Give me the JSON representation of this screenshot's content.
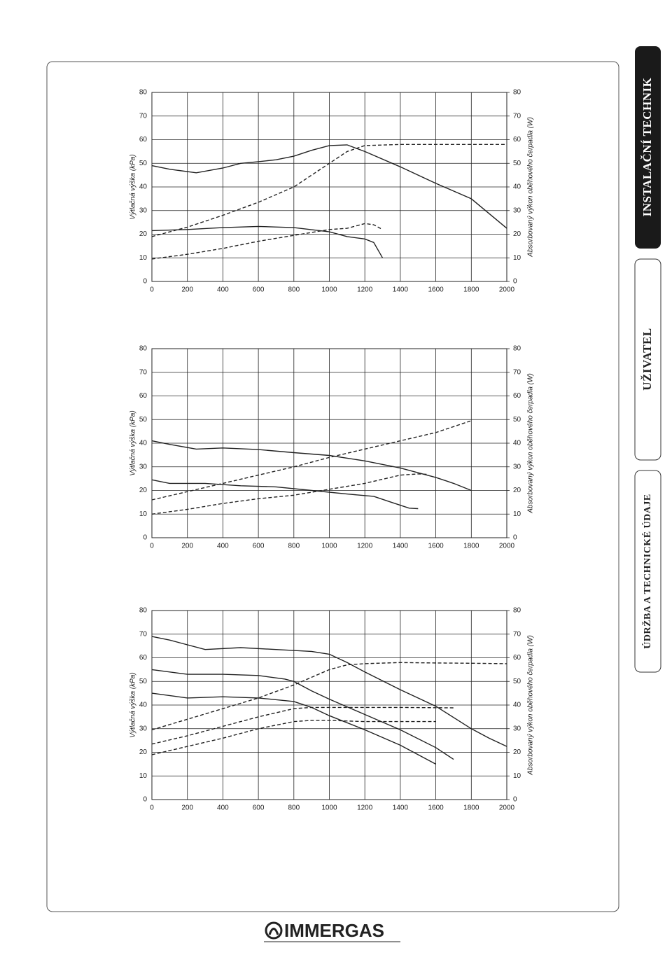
{
  "tabs": [
    "INSTALAČNÍ TECHNIK",
    "UŽIVATEL",
    "ÚDRŽBA A TECHNICKÉ ÚDAJE"
  ],
  "logo": "IMMERGAS",
  "chart_data": [
    {
      "type": "line",
      "ylabel": "Výtlačná výška (kPa)",
      "y2label": "Absorbovaný výkon oběhového čerpadla (W)",
      "xlim": [
        0,
        2000
      ],
      "xticks": [
        0,
        200,
        400,
        600,
        800,
        1000,
        1200,
        1400,
        1600,
        1800,
        2000
      ],
      "ylim": [
        0,
        80
      ],
      "yticks": [
        0,
        10,
        20,
        30,
        40,
        50,
        60,
        70,
        80
      ],
      "y2lim": [
        0,
        80
      ],
      "y2ticks": [
        0,
        10,
        20,
        30,
        40,
        50,
        60,
        70,
        80
      ],
      "grid": true,
      "series": [
        {
          "style": "solid",
          "color": "#222",
          "x": [
            0,
            100,
            250,
            400,
            500,
            600,
            700,
            800,
            900,
            1000,
            1100,
            1200,
            1400,
            1600,
            1800,
            2000
          ],
          "values": [
            49,
            47.5,
            46,
            48,
            50,
            50.7,
            51.5,
            53,
            55.5,
            57.5,
            57.8,
            55,
            48.5,
            41.5,
            35,
            22.5
          ]
        },
        {
          "style": "solid",
          "color": "#222",
          "x": [
            0,
            200,
            400,
            600,
            800,
            1000,
            1100,
            1200,
            1250,
            1300
          ],
          "values": [
            21.5,
            22,
            22.8,
            23.3,
            22.8,
            21,
            19,
            18,
            16.5,
            10
          ]
        },
        {
          "style": "dashed",
          "color": "#222",
          "axis": "y2",
          "x": [
            0,
            200,
            400,
            600,
            800,
            1000,
            1100,
            1200,
            1400,
            1600,
            1800,
            2000
          ],
          "values": [
            19,
            23,
            28,
            33.5,
            40,
            50,
            55,
            57.5,
            58,
            58,
            58,
            58
          ]
        },
        {
          "style": "dashed",
          "color": "#222",
          "axis": "y2",
          "x": [
            0,
            200,
            400,
            600,
            800,
            1000,
            1100,
            1200,
            1250,
            1300
          ],
          "values": [
            9.5,
            11.5,
            14,
            17,
            19.5,
            22,
            22.5,
            24.5,
            24,
            22
          ]
        }
      ]
    },
    {
      "type": "line",
      "ylabel": "Výtlačná výška (kPa)",
      "y2label": "Absorbovaný výkon oběhového čerpadla (W)",
      "xlim": [
        0,
        2000
      ],
      "xticks": [
        0,
        200,
        400,
        600,
        800,
        1000,
        1200,
        1400,
        1600,
        1800,
        2000
      ],
      "ylim": [
        0,
        80
      ],
      "yticks": [
        0,
        10,
        20,
        30,
        40,
        50,
        60,
        70,
        80
      ],
      "y2lim": [
        0,
        80
      ],
      "y2ticks": [
        0,
        10,
        20,
        30,
        40,
        50,
        60,
        70,
        80
      ],
      "grid": true,
      "series": [
        {
          "style": "solid",
          "color": "#222",
          "x": [
            0,
            100,
            250,
            400,
            600,
            800,
            1000,
            1200,
            1400,
            1600,
            1700,
            1800
          ],
          "values": [
            41,
            39.5,
            37.5,
            38,
            37.3,
            36,
            34.8,
            32.5,
            29.5,
            25.5,
            23,
            20
          ]
        },
        {
          "style": "solid",
          "color": "#222",
          "x": [
            0,
            100,
            300,
            500,
            700,
            900,
            1100,
            1250,
            1350,
            1450,
            1500
          ],
          "values": [
            24.5,
            23,
            23,
            22,
            21.5,
            20,
            18.5,
            17.5,
            15,
            12.5,
            12.3
          ]
        },
        {
          "style": "dashed",
          "color": "#222",
          "axis": "y2",
          "x": [
            0,
            200,
            400,
            600,
            800,
            1000,
            1200,
            1400,
            1600,
            1800
          ],
          "values": [
            16,
            19.5,
            23,
            26.5,
            30,
            34,
            37.5,
            41,
            44.5,
            49.5
          ]
        },
        {
          "style": "dashed",
          "color": "#222",
          "axis": "y2",
          "x": [
            0,
            200,
            400,
            600,
            800,
            1000,
            1200,
            1400,
            1500,
            1550
          ],
          "values": [
            10,
            12,
            14.5,
            16.5,
            18,
            20.5,
            23,
            26.5,
            27,
            26.8
          ]
        }
      ]
    },
    {
      "type": "line",
      "ylabel": "Výtlačná výška (kPa)",
      "y2label": "Absorbovaný výkon oběhového čerpadla (W)",
      "xlim": [
        0,
        2000
      ],
      "xticks": [
        0,
        200,
        400,
        600,
        800,
        1000,
        1200,
        1400,
        1600,
        1800,
        2000
      ],
      "ylim": [
        0,
        80
      ],
      "yticks": [
        0,
        10,
        20,
        30,
        40,
        50,
        60,
        70,
        80
      ],
      "y2lim": [
        0,
        80
      ],
      "y2ticks": [
        0,
        10,
        20,
        30,
        40,
        50,
        60,
        70,
        80
      ],
      "grid": true,
      "series": [
        {
          "style": "solid",
          "color": "#222",
          "x": [
            0,
            100,
            300,
            500,
            700,
            900,
            1000,
            1100,
            1200,
            1400,
            1600,
            1800,
            1900,
            2000
          ],
          "values": [
            69,
            67.5,
            63.5,
            64.3,
            63.5,
            62.7,
            61.5,
            58,
            54,
            46.5,
            39.5,
            30,
            26,
            22.5
          ]
        },
        {
          "style": "solid",
          "color": "#222",
          "x": [
            0,
            200,
            400,
            600,
            750,
            800,
            900,
            1000,
            1200,
            1400,
            1600,
            1700
          ],
          "values": [
            55,
            53,
            53,
            52.5,
            51,
            50,
            46,
            42.5,
            36,
            29.5,
            22,
            17
          ]
        },
        {
          "style": "solid",
          "color": "#222",
          "x": [
            0,
            200,
            400,
            600,
            800,
            900,
            1000,
            1200,
            1400,
            1600
          ],
          "values": [
            45,
            43,
            43.5,
            43,
            41.5,
            39,
            35.5,
            29.5,
            23,
            15
          ]
        },
        {
          "style": "dashed",
          "color": "#222",
          "axis": "y2",
          "x": [
            0,
            200,
            400,
            600,
            800,
            1000,
            1100,
            1200,
            1400,
            1600,
            1800,
            2000
          ],
          "values": [
            29.5,
            34,
            38.5,
            43,
            48.5,
            55,
            57,
            57.5,
            58,
            57.8,
            57.7,
            57.5
          ]
        },
        {
          "style": "dashed",
          "color": "#222",
          "axis": "y2",
          "x": [
            0,
            200,
            400,
            600,
            800,
            900,
            1100,
            1400,
            1700
          ],
          "values": [
            23.5,
            27,
            31,
            35,
            38.5,
            39,
            39,
            39,
            38.8
          ]
        },
        {
          "style": "dashed",
          "color": "#222",
          "axis": "y2",
          "x": [
            0,
            200,
            400,
            600,
            800,
            900,
            1000,
            1200,
            1400,
            1600
          ],
          "values": [
            19,
            22.5,
            26,
            30,
            33,
            33.5,
            33.5,
            33,
            33,
            33
          ]
        }
      ]
    }
  ]
}
